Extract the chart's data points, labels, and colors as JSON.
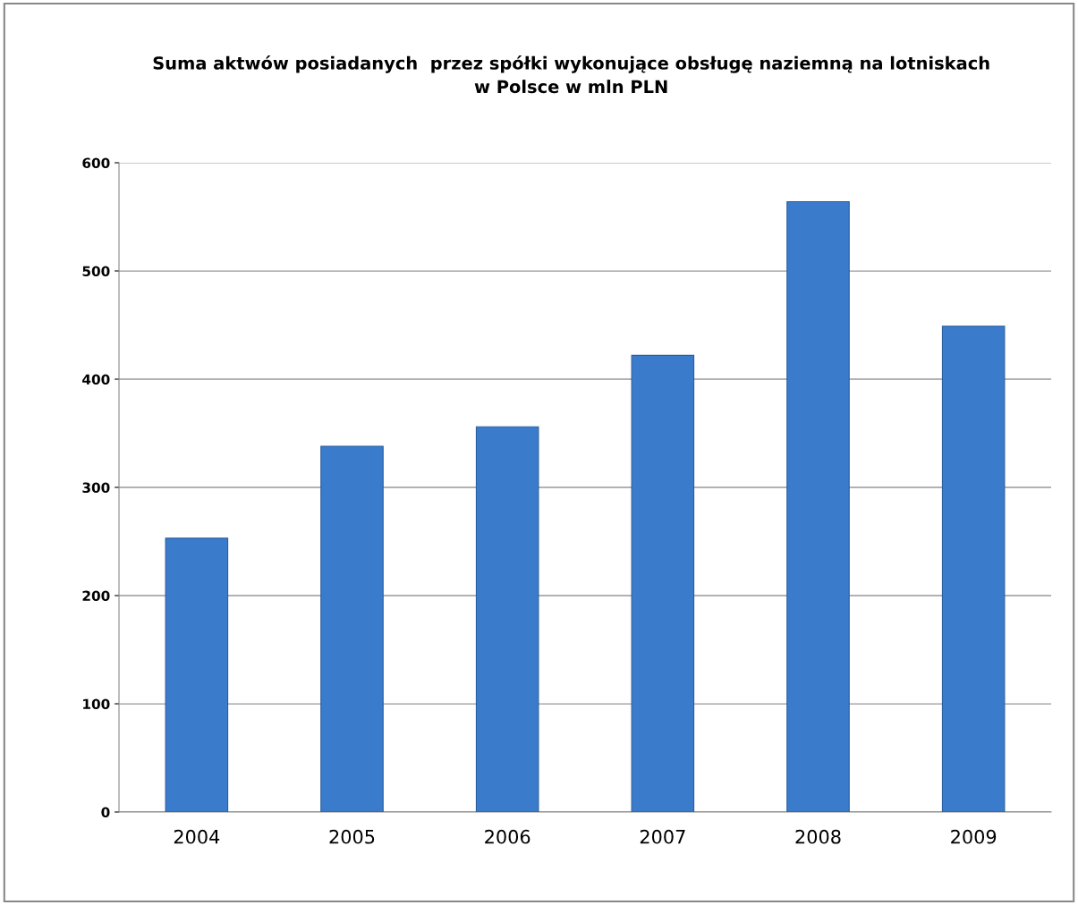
{
  "chart_data": {
    "type": "bar",
    "title": "Suma aktwów posiadanych  przez spółki wykonujące obsługę naziemną na lotniskach\nw Polsce w mln PLN",
    "categories": [
      "2004",
      "2005",
      "2006",
      "2007",
      "2008",
      "2009"
    ],
    "values": [
      253,
      338,
      356,
      422,
      564,
      449
    ],
    "color": "#3b7bcc",
    "ylim": [
      0,
      600
    ],
    "yticks": [
      0,
      100,
      200,
      300,
      400,
      500,
      600
    ],
    "grid": "y",
    "legend": false
  }
}
